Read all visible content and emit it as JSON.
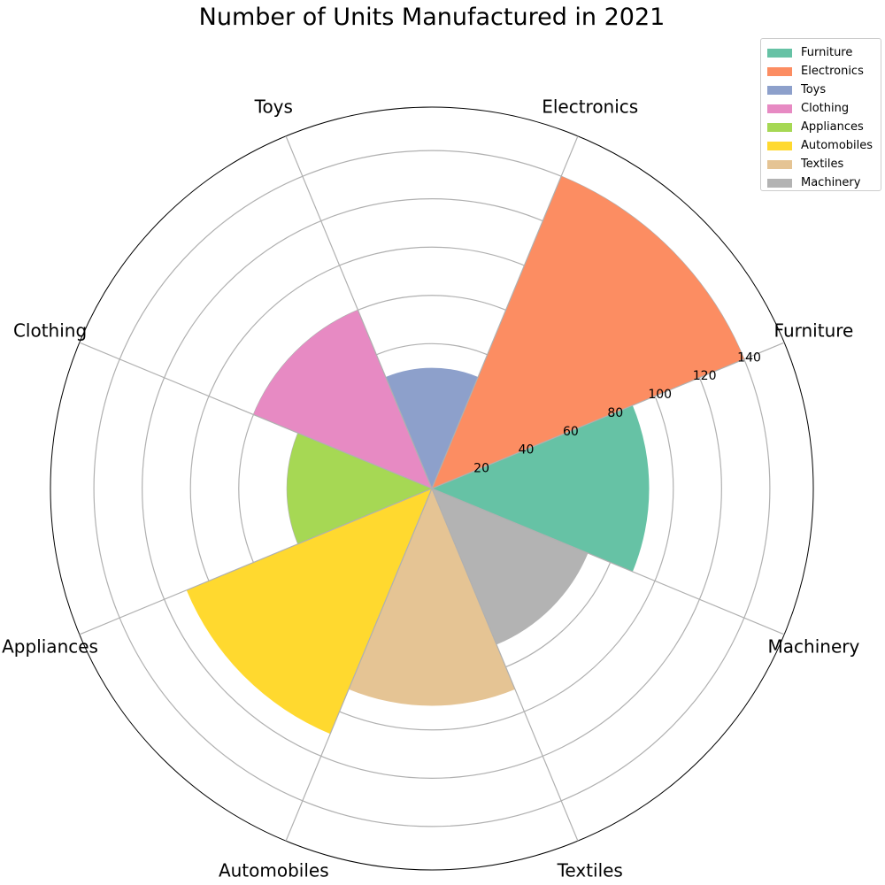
{
  "chart_data": {
    "type": "polar-bar",
    "title": "Number of Units Manufactured in 2021",
    "categories": [
      "Furniture",
      "Electronics",
      "Toys",
      "Clothing",
      "Appliances",
      "Automobiles",
      "Textiles",
      "Machinery"
    ],
    "values": [
      90,
      140,
      50,
      80,
      60,
      110,
      90,
      70
    ],
    "colors": [
      "#66c2a5",
      "#fc8d62",
      "#8da0cb",
      "#e78ac3",
      "#a6d854",
      "#ffd92f",
      "#e5c494",
      "#b3b3b3"
    ],
    "radial_ticks": [
      "20",
      "40",
      "60",
      "80",
      "100",
      "120",
      "140"
    ],
    "radial_tick_values": [
      20,
      40,
      60,
      80,
      100,
      120,
      140
    ],
    "r_max": 158,
    "grid": true,
    "legend": "top-right"
  }
}
